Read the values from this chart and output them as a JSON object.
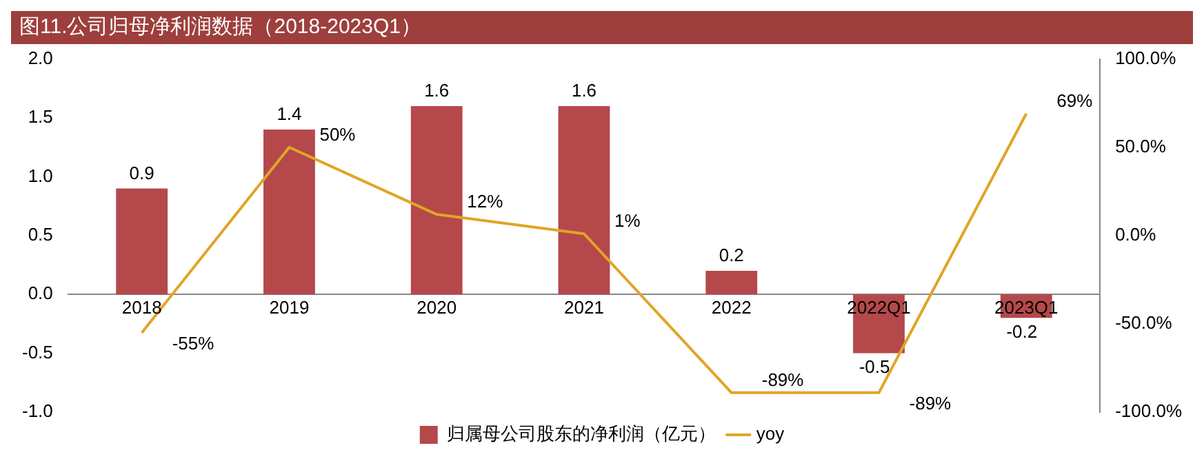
{
  "chart_data": {
    "type": "bar",
    "title": "图11.公司归母净利润数据（2018-2023Q1）",
    "categories": [
      "2018",
      "2019",
      "2020",
      "2021",
      "2022",
      "2022Q1",
      "2023Q1"
    ],
    "series": [
      {
        "name": "归属母公司股东的净利润（亿元）",
        "color": "#b5484a",
        "values": [
          0.9,
          1.4,
          1.6,
          1.6,
          0.2,
          -0.5,
          -0.2
        ]
      },
      {
        "name": "yoy",
        "type": "line",
        "axis": "y2",
        "color": "#e0a526",
        "values": [
          -55,
          50,
          12,
          1,
          -89,
          -89,
          69
        ],
        "value_labels": [
          "-55%",
          "50%",
          "12%",
          "1%",
          "-89%",
          "-89%",
          "69%"
        ]
      }
    ],
    "data_labels": true,
    "ylim": [
      -1,
      2
    ],
    "yticks": [
      {
        "value": -1,
        "label": "-1.0"
      },
      {
        "value": -0.5,
        "label": "-0.5"
      },
      {
        "value": 0,
        "label": "0.0"
      },
      {
        "value": 0.5,
        "label": "0.5"
      },
      {
        "value": 1,
        "label": "1.0"
      },
      {
        "value": 1.5,
        "label": "1.5"
      },
      {
        "value": 2,
        "label": "2.0"
      }
    ],
    "y2lim": [
      -100,
      100
    ],
    "y2ticks": [
      {
        "value": -100,
        "label": "-100.0%"
      },
      {
        "value": -50,
        "label": "-50.0%"
      },
      {
        "value": 0,
        "label": "0.0%"
      },
      {
        "value": 50,
        "label": "50.0%"
      },
      {
        "value": 100,
        "label": "100.0%"
      }
    ],
    "legend": "bottom",
    "grid": false,
    "marker": "none"
  }
}
